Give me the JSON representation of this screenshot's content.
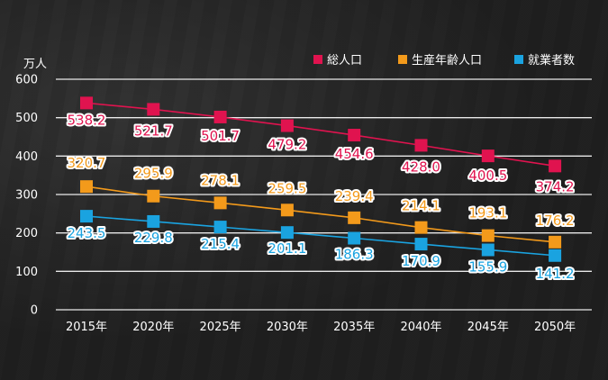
{
  "chart_data": {
    "type": "line",
    "title": "",
    "ylabel": "万人",
    "xlabel": "",
    "ylim": [
      0,
      600
    ],
    "yticks": [
      0,
      100,
      200,
      300,
      400,
      500,
      600
    ],
    "categories": [
      "2015年",
      "2020年",
      "2025年",
      "2030年",
      "2035年",
      "2040年",
      "2045年",
      "2050年"
    ],
    "legend_position": "top-right",
    "series": [
      {
        "name": "総人口",
        "color": "#e0134f",
        "labels": [
          "538.2",
          "521.7",
          "501.7",
          "479.2",
          "454.6",
          "428.0",
          "400.5",
          "374.2"
        ],
        "values": [
          538.2,
          521.7,
          501.7,
          479.2,
          454.6,
          428.0,
          400.5,
          374.2
        ]
      },
      {
        "name": "生産年齢人口",
        "color": "#f39a1b",
        "labels": [
          "320.7",
          "295.9",
          "278.1",
          "259.5",
          "239.4",
          "214.1",
          "193.1",
          "176.2"
        ],
        "values": [
          320.7,
          295.9,
          278.1,
          259.5,
          239.4,
          214.1,
          193.1,
          176.2
        ]
      },
      {
        "name": "就業者数",
        "color": "#1aa3e0",
        "labels": [
          "243.5",
          "229.8",
          "215.4",
          "201.1",
          "186.3",
          "170.9",
          "155.9",
          "141.2"
        ],
        "values": [
          243.5,
          229.8,
          215.4,
          201.1,
          186.3,
          170.9,
          155.9,
          141.2
        ]
      }
    ]
  }
}
